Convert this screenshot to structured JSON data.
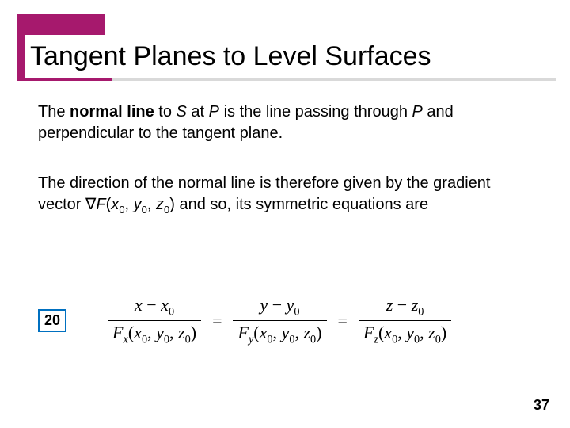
{
  "colors": {
    "accent": "#a6196d",
    "underline_light": "#d9d9d9",
    "text": "#000000",
    "tag_border": "#0070c0",
    "background": "#ffffff"
  },
  "title": "Tangent Planes to Level Surfaces",
  "paragraphs": {
    "p1_a": "The ",
    "p1_b": "normal line",
    "p1_c": " to ",
    "p1_S": "S",
    "p1_d": " at ",
    "p1_P": "P",
    "p1_e": " is the line passing through ",
    "p1_P2": "P",
    "p1_f": " and perpendicular to the tangent plane.",
    "p2_a": "The direction of the normal line is therefore given by the gradient vector ",
    "p2_grad": "∇",
    "p2_F": "F",
    "p2_open": "(",
    "p2_x": "x",
    "p2_x0": "0",
    "p2_c1": ", ",
    "p2_y": "y",
    "p2_y0": "0",
    "p2_c2": ", ",
    "p2_z": "z",
    "p2_z0": "0",
    "p2_close": ") and so, its symmetric equations are"
  },
  "equation": {
    "tag": "20",
    "terms": [
      {
        "num_var": "x",
        "den_sub": "x"
      },
      {
        "num_var": "y",
        "den_sub": "y"
      },
      {
        "num_var": "z",
        "den_sub": "z"
      }
    ],
    "minus": " − ",
    "sub0": "0",
    "F": "F",
    "args_open": "(",
    "x": "x",
    "y": "y",
    "z": "z",
    "comma": ", ",
    "args_close": ")",
    "equals": "="
  },
  "page_number": "37"
}
